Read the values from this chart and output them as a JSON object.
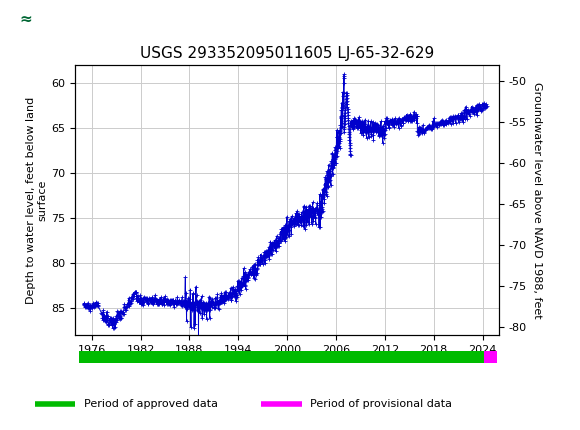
{
  "title": "USGS 293352095011605 LJ-65-32-629",
  "ylabel_left": "Depth to water level, feet below land\nsurface",
  "ylabel_right": "Groundwater level above NAVD 1988, feet",
  "ylim_left": [
    88,
    58
  ],
  "xlim": [
    1974,
    2026
  ],
  "xticks": [
    1976,
    1982,
    1988,
    1994,
    2000,
    2006,
    2012,
    2018,
    2024
  ],
  "yticks_left": [
    60,
    65,
    70,
    75,
    80,
    85
  ],
  "yticks_right": [
    -50,
    -55,
    -60,
    -65,
    -70,
    -75,
    -80
  ],
  "grid_color": "#cccccc",
  "line_color": "#0000cc",
  "bar_approved_color": "#00bb00",
  "bar_provisional_color": "#ff00ff",
  "background_color": "#ffffff",
  "header_color": "#006633",
  "title_fontsize": 11,
  "axis_fontsize": 8,
  "tick_fontsize": 8,
  "approved_xstart": 1974.5,
  "approved_xend": 2024.2,
  "provisional_xstart": 2024.2,
  "provisional_xend": 2025.8,
  "legend_approved": "Period of approved data",
  "legend_provisional": "Period of provisional data",
  "right_ylim_top": -48.0,
  "right_ylim_bottom": -81.07
}
